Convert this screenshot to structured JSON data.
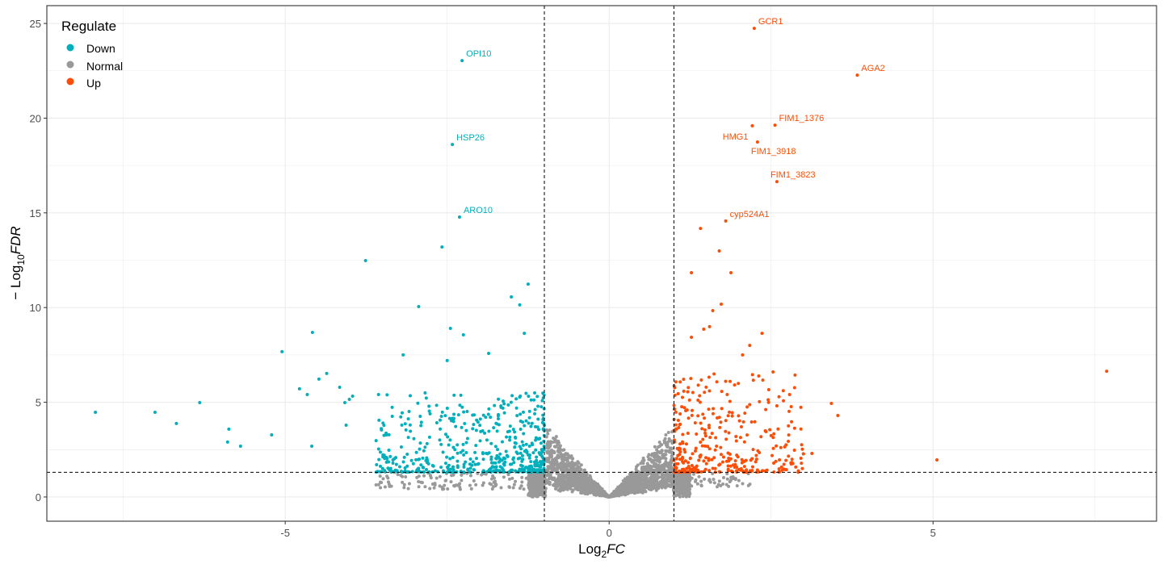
{
  "chart_data": {
    "type": "scatter",
    "title": "",
    "xlabel": {
      "main": "Log",
      "sub": "2",
      "italic": "FC"
    },
    "ylabel": {
      "prefix": "− Log",
      "sub": "10",
      "italic": "FDR"
    },
    "xlim": [
      -8.68,
      8.45
    ],
    "ylim": [
      -1.28,
      25.94
    ],
    "x_ticks": [
      {
        "value": -5,
        "label": "-5"
      },
      {
        "value": 0,
        "label": "0"
      },
      {
        "value": 5,
        "label": "5"
      }
    ],
    "y_ticks": [
      {
        "value": 0,
        "label": "0"
      },
      {
        "value": 5,
        "label": "5"
      },
      {
        "value": 10,
        "label": "10"
      },
      {
        "value": 15,
        "label": "15"
      },
      {
        "value": 20,
        "label": "20"
      },
      {
        "value": 25,
        "label": "25"
      }
    ],
    "grid": true,
    "thresholds": {
      "log2fc": [
        -1,
        1
      ],
      "neg_log10_fdr": 1.3
    },
    "legend": {
      "title": "Regulate",
      "position": "top-left",
      "entries": [
        {
          "label": "Down",
          "color": "#00AFBB"
        },
        {
          "label": "Normal",
          "color": "#999999"
        },
        {
          "label": "Up",
          "color": "#FC4E07"
        }
      ]
    },
    "labeled_points": [
      {
        "label": "GCR1",
        "x": 2.24,
        "y": 24.74,
        "group": "Up",
        "anchor": "right-up"
      },
      {
        "label": "AGA2",
        "x": 3.83,
        "y": 22.27,
        "group": "Up",
        "anchor": "right-up"
      },
      {
        "label": "FIM1_1376",
        "x": 2.56,
        "y": 19.63,
        "group": "Up",
        "anchor": "right-up"
      },
      {
        "label": "HMG1",
        "x": 2.21,
        "y": 19.6,
        "group": "Up",
        "anchor": "left-down"
      },
      {
        "label": "FIM1_3918",
        "x": 2.29,
        "y": 18.74,
        "group": "Up",
        "anchor": "below"
      },
      {
        "label": "FIM1_3823",
        "x": 2.59,
        "y": 16.65,
        "group": "Up",
        "anchor": "up"
      },
      {
        "label": "cyp524A1",
        "x": 1.8,
        "y": 14.57,
        "group": "Up",
        "anchor": "right-up"
      },
      {
        "label": "OPI10",
        "x": -2.27,
        "y": 23.04,
        "group": "Down",
        "anchor": "right-up"
      },
      {
        "label": "HSP26",
        "x": -2.42,
        "y": 18.61,
        "group": "Down",
        "anchor": "right-up"
      },
      {
        "label": "ARO10",
        "x": -2.31,
        "y": 14.78,
        "group": "Down",
        "anchor": "right-up"
      }
    ],
    "down_points": [
      [
        -7.93,
        4.47
      ],
      [
        -7.01,
        4.47
      ],
      [
        -6.68,
        3.88
      ],
      [
        -6.32,
        4.98
      ],
      [
        -5.87,
        3.58
      ],
      [
        -5.89,
        2.9
      ],
      [
        -5.69,
        2.68
      ],
      [
        -5.21,
        3.28
      ],
      [
        -5.05,
        7.67
      ],
      [
        -4.78,
        5.71
      ],
      [
        -4.66,
        5.41
      ],
      [
        -4.58,
        8.69
      ],
      [
        -4.59,
        2.68
      ],
      [
        -4.48,
        6.22
      ],
      [
        -4.36,
        6.52
      ],
      [
        -4.16,
        5.79
      ],
      [
        -4.08,
        4.98
      ],
      [
        -4.01,
        5.15
      ],
      [
        -3.96,
        5.32
      ],
      [
        -4.06,
        3.79
      ],
      [
        -3.76,
        12.48
      ],
      [
        -3.56,
        5.41
      ],
      [
        -3.59,
        1.7
      ],
      [
        -3.18,
        7.5
      ],
      [
        -2.94,
        10.05
      ],
      [
        -2.58,
        13.2
      ],
      [
        -2.45,
        8.9
      ],
      [
        -2.25,
        8.56
      ],
      [
        -2.5,
        7.2
      ],
      [
        -1.25,
        11.24
      ],
      [
        -1.51,
        10.56
      ],
      [
        -1.38,
        10.14
      ],
      [
        -1.86,
        7.58
      ],
      [
        -1.31,
        8.64
      ]
    ],
    "up_points": [
      [
        1.41,
        14.18
      ],
      [
        1.27,
        11.84
      ],
      [
        1.7,
        12.99
      ],
      [
        1.88,
        11.84
      ],
      [
        1.73,
        10.18
      ],
      [
        1.6,
        9.84
      ],
      [
        1.46,
        8.86
      ],
      [
        1.55,
        8.99
      ],
      [
        1.27,
        8.43
      ],
      [
        2.36,
        8.64
      ],
      [
        2.17,
        8.0
      ],
      [
        2.06,
        7.5
      ],
      [
        2.53,
        6.6
      ],
      [
        7.68,
        6.64
      ],
      [
        5.06,
        1.96
      ],
      [
        3.43,
        4.94
      ],
      [
        3.53,
        4.3
      ],
      [
        2.81,
        4.77
      ],
      [
        2.86,
        2.47
      ],
      [
        3.13,
        2.3
      ],
      [
        2.59,
        4.81
      ],
      [
        2.32,
        5.03
      ]
    ],
    "dense_clouds": {
      "down": {
        "x_range": [
          -3.6,
          -1.0
        ],
        "y_range": [
          1.31,
          5.5
        ],
        "count": 520
      },
      "up": {
        "x_range": [
          1.0,
          3.0
        ],
        "y_range": [
          1.31,
          6.5
        ],
        "count": 330
      },
      "normal": {
        "x_range": [
          -3.6,
          2.2
        ],
        "y_max_at_threshold": 6.2,
        "count": 2600
      }
    }
  }
}
